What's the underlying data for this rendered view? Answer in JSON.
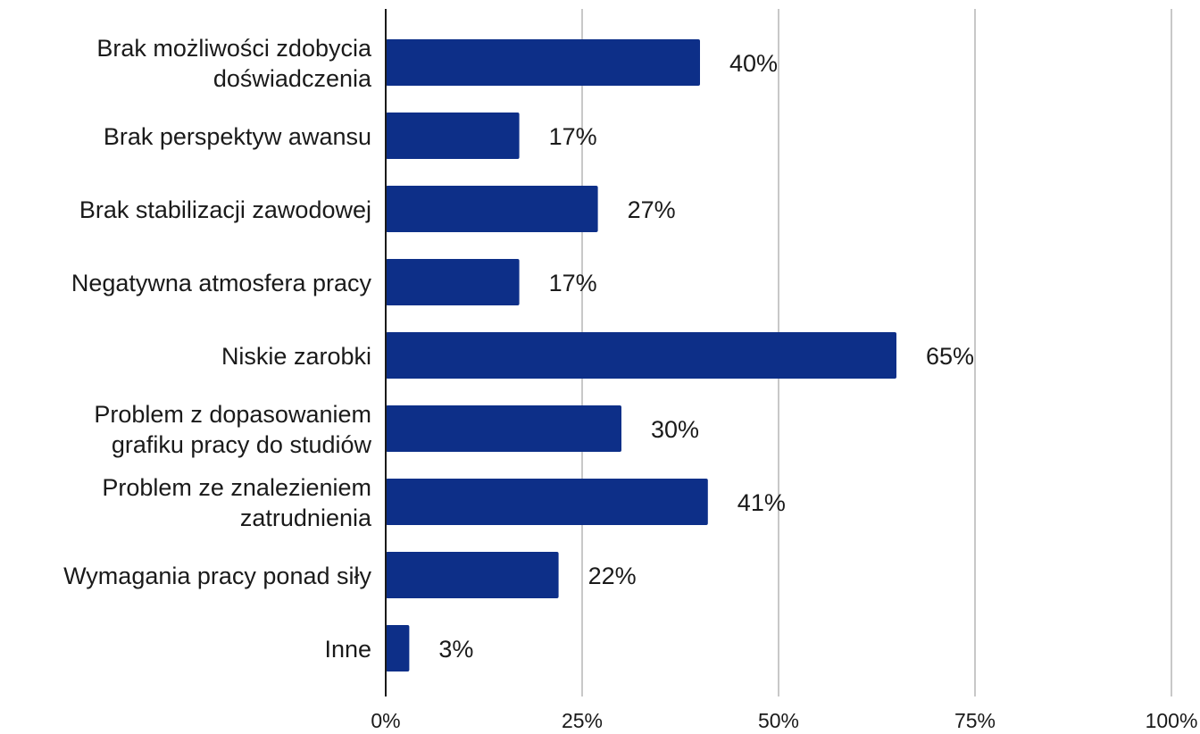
{
  "chart_data": {
    "type": "bar",
    "orientation": "horizontal",
    "title": "",
    "xlabel": "",
    "ylabel": "",
    "categories": [
      "Brak możliwości zdobycia doświadczenia",
      "Brak perspektyw awansu",
      "Brak stabilizacji zawodowej",
      "Negatywna atmosfera pracy",
      "Niskie zarobki",
      "Problem z dopasowaniem grafiku pracy do studiów",
      "Problem ze znalezieniem zatrudnienia",
      "Wymagania pracy ponad siły",
      "Inne"
    ],
    "category_lines": [
      [
        "Brak możliwości zdobycia",
        "doświadczenia"
      ],
      [
        "Brak perspektyw awansu"
      ],
      [
        "Brak stabilizacji zawodowej"
      ],
      [
        "Negatywna atmosfera pracy"
      ],
      [
        "Niskie zarobki"
      ],
      [
        "Problem z dopasowaniem",
        "grafiku pracy do studiów"
      ],
      [
        "Problem ze znalezieniem",
        "zatrudnienia"
      ],
      [
        "Wymagania pracy ponad siły"
      ],
      [
        "Inne"
      ]
    ],
    "values": [
      40,
      17,
      27,
      17,
      65,
      30,
      41,
      22,
      3
    ],
    "data_labels": [
      "40%",
      "17%",
      "27%",
      "17%",
      "65%",
      "30%",
      "41%",
      "22%",
      "3%"
    ],
    "xlim": [
      0,
      100
    ],
    "x_ticks": [
      0,
      25,
      50,
      75,
      100
    ],
    "x_tick_labels": [
      "0%",
      "25%",
      "50%",
      "75%",
      "100%"
    ],
    "grid": true,
    "legend": "none",
    "bar_color": "#0d2f88",
    "grid_color": "#c8c8c8"
  }
}
